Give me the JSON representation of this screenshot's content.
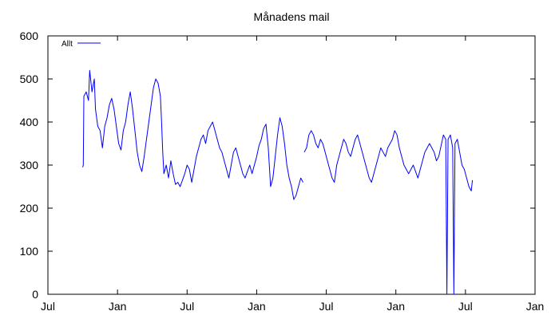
{
  "chart_data": {
    "type": "line",
    "title": "Månadens mail",
    "xlabel": "",
    "ylabel": "",
    "ylim": [
      0,
      600
    ],
    "yticks": [
      "0",
      "100",
      "200",
      "300",
      "400",
      "500",
      "600"
    ],
    "xticks": [
      "Jul",
      "Jan",
      "Jul",
      "Jan",
      "Jul",
      "Jan",
      "Jul",
      "Jan"
    ],
    "x_unit": "month_index",
    "xlim": [
      0,
      42
    ],
    "grid": false,
    "legend_position": "top-left",
    "series": [
      {
        "name": "Allt",
        "color": "#0000ff",
        "points": [
          [
            3.0,
            295
          ],
          [
            3.05,
            300
          ],
          [
            3.1,
            460
          ],
          [
            3.3,
            470
          ],
          [
            3.5,
            450
          ],
          [
            3.6,
            520
          ],
          [
            3.8,
            470
          ],
          [
            4.0,
            500
          ],
          [
            4.1,
            430
          ],
          [
            4.3,
            390
          ],
          [
            4.5,
            380
          ],
          [
            4.7,
            340
          ],
          [
            4.9,
            390
          ],
          [
            5.1,
            410
          ],
          [
            5.3,
            440
          ],
          [
            5.5,
            455
          ],
          [
            5.7,
            430
          ],
          [
            5.9,
            390
          ],
          [
            6.1,
            350
          ],
          [
            6.3,
            335
          ],
          [
            6.5,
            380
          ],
          [
            6.7,
            400
          ],
          [
            6.9,
            440
          ],
          [
            7.1,
            470
          ],
          [
            7.3,
            430
          ],
          [
            7.5,
            380
          ],
          [
            7.7,
            330
          ],
          [
            7.9,
            300
          ],
          [
            8.1,
            285
          ],
          [
            8.3,
            320
          ],
          [
            8.5,
            360
          ],
          [
            8.7,
            400
          ],
          [
            8.9,
            440
          ],
          [
            9.1,
            480
          ],
          [
            9.3,
            500
          ],
          [
            9.5,
            490
          ],
          [
            9.7,
            460
          ],
          [
            9.8,
            400
          ],
          [
            9.9,
            330
          ],
          [
            10.0,
            280
          ],
          [
            10.2,
            300
          ],
          [
            10.4,
            270
          ],
          [
            10.6,
            310
          ],
          [
            10.8,
            280
          ],
          [
            11.0,
            255
          ],
          [
            11.2,
            260
          ],
          [
            11.4,
            250
          ],
          [
            11.6,
            265
          ],
          [
            11.8,
            280
          ],
          [
            12.0,
            300
          ],
          [
            12.2,
            290
          ],
          [
            12.4,
            260
          ],
          [
            12.6,
            290
          ],
          [
            12.8,
            320
          ],
          [
            13.0,
            340
          ],
          [
            13.2,
            360
          ],
          [
            13.4,
            370
          ],
          [
            13.6,
            350
          ],
          [
            13.8,
            380
          ],
          [
            14.0,
            390
          ],
          [
            14.2,
            400
          ],
          [
            14.4,
            380
          ],
          [
            14.6,
            360
          ],
          [
            14.8,
            340
          ],
          [
            15.0,
            330
          ],
          [
            15.2,
            310
          ],
          [
            15.4,
            290
          ],
          [
            15.6,
            270
          ],
          [
            15.8,
            300
          ],
          [
            16.0,
            330
          ],
          [
            16.2,
            340
          ],
          [
            16.4,
            320
          ],
          [
            16.6,
            300
          ],
          [
            16.8,
            280
          ],
          [
            17.0,
            270
          ],
          [
            17.2,
            285
          ],
          [
            17.4,
            300
          ],
          [
            17.6,
            280
          ],
          [
            17.8,
            300
          ],
          [
            18.0,
            320
          ],
          [
            18.2,
            345
          ],
          [
            18.4,
            360
          ],
          [
            18.6,
            385
          ],
          [
            18.8,
            395
          ],
          [
            19.0,
            340
          ],
          [
            19.2,
            250
          ],
          [
            19.4,
            270
          ],
          [
            19.6,
            320
          ],
          [
            19.8,
            370
          ],
          [
            20.0,
            410
          ],
          [
            20.2,
            390
          ],
          [
            20.4,
            350
          ],
          [
            20.6,
            300
          ],
          [
            20.8,
            270
          ],
          [
            21.0,
            250
          ],
          [
            21.2,
            220
          ],
          [
            21.4,
            230
          ],
          [
            21.6,
            250
          ],
          [
            21.8,
            270
          ],
          [
            22.0,
            260
          ],
          null,
          [
            22.1,
            330
          ],
          [
            22.3,
            340
          ],
          [
            22.5,
            370
          ],
          [
            22.7,
            380
          ],
          [
            22.9,
            370
          ],
          [
            23.1,
            350
          ],
          [
            23.3,
            340
          ],
          [
            23.5,
            360
          ],
          [
            23.7,
            350
          ],
          [
            23.9,
            330
          ],
          [
            24.1,
            310
          ],
          [
            24.3,
            290
          ],
          [
            24.5,
            270
          ],
          [
            24.7,
            260
          ],
          [
            24.9,
            300
          ],
          [
            25.1,
            320
          ],
          [
            25.3,
            340
          ],
          [
            25.5,
            360
          ],
          [
            25.7,
            350
          ],
          [
            25.9,
            330
          ],
          [
            26.1,
            320
          ],
          [
            26.3,
            340
          ],
          [
            26.5,
            360
          ],
          [
            26.7,
            370
          ],
          [
            26.9,
            350
          ],
          [
            27.1,
            330
          ],
          [
            27.3,
            310
          ],
          [
            27.5,
            290
          ],
          [
            27.7,
            270
          ],
          [
            27.9,
            260
          ],
          [
            28.1,
            280
          ],
          [
            28.3,
            300
          ],
          [
            28.5,
            320
          ],
          [
            28.7,
            340
          ],
          [
            28.9,
            330
          ],
          [
            29.1,
            320
          ],
          [
            29.3,
            340
          ],
          [
            29.5,
            350
          ],
          [
            29.7,
            360
          ],
          [
            29.9,
            380
          ],
          [
            30.1,
            370
          ],
          [
            30.3,
            340
          ],
          [
            30.5,
            320
          ],
          [
            30.7,
            300
          ],
          [
            30.9,
            290
          ],
          [
            31.1,
            280
          ],
          [
            31.3,
            290
          ],
          [
            31.5,
            300
          ],
          [
            31.7,
            285
          ],
          [
            31.9,
            270
          ],
          [
            32.1,
            290
          ],
          [
            32.3,
            310
          ],
          [
            32.5,
            330
          ],
          [
            32.7,
            340
          ],
          [
            32.9,
            350
          ],
          [
            33.1,
            340
          ],
          [
            33.3,
            330
          ],
          [
            33.5,
            310
          ],
          [
            33.7,
            320
          ],
          [
            33.9,
            345
          ],
          [
            34.1,
            370
          ],
          [
            34.3,
            360
          ],
          [
            34.4,
            0
          ],
          [
            34.5,
            360
          ],
          [
            34.7,
            370
          ],
          [
            34.9,
            340
          ],
          [
            35.0,
            0
          ],
          [
            35.1,
            350
          ],
          [
            35.3,
            360
          ],
          [
            35.5,
            330
          ],
          [
            35.7,
            300
          ],
          [
            35.9,
            290
          ],
          [
            36.1,
            270
          ],
          [
            36.3,
            250
          ],
          [
            36.5,
            240
          ],
          [
            36.6,
            265
          ]
        ]
      }
    ]
  }
}
